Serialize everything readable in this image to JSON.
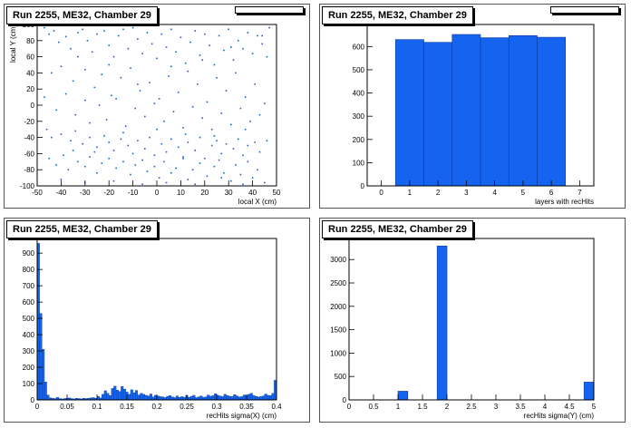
{
  "colors": {
    "fill": "#1464f0",
    "edge": "#0a3a9a",
    "scatter": "#1a5fd0"
  },
  "panels": [
    {
      "title": "Run 2255, ME32, Chamber 29"
    },
    {
      "title": "Run 2255, ME32, Chamber 29"
    },
    {
      "title": "Run 2255, ME32, Chamber 29"
    },
    {
      "title": "Run 2255, ME32, Chamber 29"
    }
  ],
  "chart_data": [
    {
      "type": "scatter",
      "xlabel": "local X (cm)",
      "ylabel": "local Y (cm)",
      "xlim": [
        -50,
        50
      ],
      "ylim": [
        -100,
        100
      ],
      "xticks": [
        -50,
        -40,
        -30,
        -20,
        -10,
        0,
        10,
        20,
        30,
        40,
        50
      ],
      "yticks": [
        -100,
        -80,
        -60,
        -40,
        -20,
        0,
        20,
        40,
        60,
        80,
        100
      ],
      "points": [
        [
          -45,
          88
        ],
        [
          -43,
          92
        ],
        [
          -41,
          78
        ],
        [
          -38,
          85
        ],
        [
          -36,
          70
        ],
        [
          -33,
          90
        ],
        [
          -31,
          94
        ],
        [
          -29,
          80
        ],
        [
          -27,
          66
        ],
        [
          -25,
          88
        ],
        [
          -22,
          92
        ],
        [
          -20,
          74
        ],
        [
          -18,
          60
        ],
        [
          -16,
          86
        ],
        [
          -14,
          94
        ],
        [
          -12,
          70
        ],
        [
          -10,
          96
        ],
        [
          -8,
          82
        ],
        [
          -6,
          64
        ],
        [
          -4,
          90
        ],
        [
          -2,
          76
        ],
        [
          0,
          58
        ],
        [
          2,
          88
        ],
        [
          4,
          72
        ],
        [
          6,
          94
        ],
        [
          8,
          66
        ],
        [
          10,
          84
        ],
        [
          12,
          52
        ],
        [
          14,
          78
        ],
        [
          16,
          92
        ],
        [
          18,
          62
        ],
        [
          20,
          88
        ],
        [
          22,
          74
        ],
        [
          24,
          50
        ],
        [
          26,
          86
        ],
        [
          28,
          68
        ],
        [
          30,
          94
        ],
        [
          32,
          56
        ],
        [
          34,
          80
        ],
        [
          36,
          70
        ],
        [
          38,
          90
        ],
        [
          40,
          64
        ],
        [
          42,
          86
        ],
        [
          44,
          76
        ],
        [
          46,
          60
        ],
        [
          -44,
          40
        ],
        [
          -40,
          48
        ],
        [
          -35,
          30
        ],
        [
          -30,
          44
        ],
        [
          -26,
          22
        ],
        [
          -23,
          38
        ],
        [
          -19,
          12
        ],
        [
          -15,
          34
        ],
        [
          -11,
          46
        ],
        [
          -7,
          18
        ],
        [
          -3,
          28
        ],
        [
          1,
          8
        ],
        [
          5,
          36
        ],
        [
          9,
          16
        ],
        [
          13,
          42
        ],
        [
          17,
          26
        ],
        [
          21,
          4
        ],
        [
          25,
          34
        ],
        [
          29,
          18
        ],
        [
          33,
          40
        ],
        [
          37,
          10
        ],
        [
          41,
          26
        ],
        [
          45,
          2
        ],
        [
          -47,
          10
        ],
        [
          -42,
          -6
        ],
        [
          -38,
          14
        ],
        [
          -34,
          -12
        ],
        [
          -30,
          6
        ],
        [
          -28,
          -22
        ],
        [
          -24,
          0
        ],
        [
          -21,
          -18
        ],
        [
          -17,
          8
        ],
        [
          -13,
          -26
        ],
        [
          -9,
          -4
        ],
        [
          -5,
          -14
        ],
        [
          -1,
          2
        ],
        [
          3,
          -20
        ],
        [
          7,
          -8
        ],
        [
          11,
          -28
        ],
        [
          15,
          -2
        ],
        [
          19,
          -16
        ],
        [
          23,
          -30
        ],
        [
          27,
          -10
        ],
        [
          31,
          -24
        ],
        [
          35,
          -4
        ],
        [
          39,
          -20
        ],
        [
          43,
          -12
        ],
        [
          -46,
          -30
        ],
        [
          -44,
          -40
        ],
        [
          -40,
          -36
        ],
        [
          -36,
          -44
        ],
        [
          -34,
          -32
        ],
        [
          -31,
          -48
        ],
        [
          -28,
          -40
        ],
        [
          -25,
          -52
        ],
        [
          -22,
          -38
        ],
        [
          -20,
          -46
        ],
        [
          -18,
          -56
        ],
        [
          -15,
          -42
        ],
        [
          -12,
          -50
        ],
        [
          -10,
          -60
        ],
        [
          -8,
          -44
        ],
        [
          -5,
          -54
        ],
        [
          -3,
          -40
        ],
        [
          -1,
          -62
        ],
        [
          2,
          -48
        ],
        [
          4,
          -58
        ],
        [
          6,
          -42
        ],
        [
          9,
          -52
        ],
        [
          11,
          -64
        ],
        [
          13,
          -46
        ],
        [
          16,
          -56
        ],
        [
          18,
          -40
        ],
        [
          20,
          -66
        ],
        [
          23,
          -50
        ],
        [
          25,
          -44
        ],
        [
          27,
          -60
        ],
        [
          29,
          -48
        ],
        [
          32,
          -54
        ],
        [
          34,
          -42
        ],
        [
          36,
          -62
        ],
        [
          38,
          -50
        ],
        [
          41,
          -46
        ],
        [
          43,
          -58
        ],
        [
          46,
          -44
        ],
        [
          -45,
          -66
        ],
        [
          -42,
          -74
        ],
        [
          -39,
          -62
        ],
        [
          -37,
          -80
        ],
        [
          -33,
          -70
        ],
        [
          -30,
          -76
        ],
        [
          -28,
          -64
        ],
        [
          -25,
          -84
        ],
        [
          -23,
          -72
        ],
        [
          -20,
          -66
        ],
        [
          -17,
          -78
        ],
        [
          -14,
          -70
        ],
        [
          -11,
          -86
        ],
        [
          -9,
          -74
        ],
        [
          -6,
          -68
        ],
        [
          -4,
          -82
        ],
        [
          -1,
          -76
        ],
        [
          1,
          -90
        ],
        [
          3,
          -70
        ],
        [
          6,
          -84
        ],
        [
          8,
          -78
        ],
        [
          11,
          -66
        ],
        [
          13,
          -92
        ],
        [
          15,
          -80
        ],
        [
          18,
          -72
        ],
        [
          21,
          -88
        ],
        [
          24,
          -76
        ],
        [
          26,
          -68
        ],
        [
          28,
          -84
        ],
        [
          31,
          -94
        ],
        [
          33,
          -74
        ],
        [
          35,
          -86
        ],
        [
          38,
          -70
        ],
        [
          40,
          -90
        ],
        [
          42,
          -80
        ],
        [
          45,
          -96
        ],
        [
          -40,
          -92
        ],
        [
          -30,
          -96
        ],
        [
          -18,
          -94
        ],
        [
          -6,
          -98
        ],
        [
          4,
          -96
        ],
        [
          16,
          -98
        ],
        [
          27,
          -90
        ],
        [
          36,
          -98
        ],
        [
          -35,
          -56
        ],
        [
          -26,
          -58
        ],
        [
          -14,
          -34
        ],
        [
          0,
          -30
        ],
        [
          12,
          -36
        ],
        [
          24,
          -38
        ],
        [
          37,
          -30
        ],
        [
          -8,
          26
        ],
        [
          6,
          48
        ],
        [
          19,
          56
        ],
        [
          31,
          72
        ],
        [
          -20,
          50
        ],
        [
          -33,
          60
        ],
        [
          44,
          86
        ],
        [
          -47,
          96
        ],
        [
          47,
          96
        ]
      ]
    },
    {
      "type": "bar",
      "xlabel": "layers with recHits",
      "ylabel": "",
      "xlim": [
        -0.5,
        7.5
      ],
      "ylim": [
        0,
        695
      ],
      "xticks": [
        0,
        1,
        2,
        3,
        4,
        5,
        6,
        7
      ],
      "yticks": [
        0,
        100,
        200,
        300,
        400,
        500,
        600
      ],
      "bin_width": 1,
      "bins": [
        {
          "x": 1,
          "value": 630
        },
        {
          "x": 2,
          "value": 618
        },
        {
          "x": 3,
          "value": 652
        },
        {
          "x": 4,
          "value": 638
        },
        {
          "x": 5,
          "value": 647
        },
        {
          "x": 6,
          "value": 640
        }
      ]
    },
    {
      "type": "bar",
      "xlabel": "recHits sigma(X) (cm)",
      "ylabel": "",
      "xlim": [
        0,
        0.4
      ],
      "ylim": [
        0,
        990
      ],
      "xticks": [
        0,
        0.05,
        0.1,
        0.15,
        0.2,
        0.25,
        0.3,
        0.35,
        0.4
      ],
      "yticks": [
        0,
        100,
        200,
        300,
        400,
        500,
        600,
        700,
        800,
        900
      ],
      "bin_width": 0.004,
      "values": [
        960,
        530,
        310,
        110,
        30,
        12,
        10,
        8,
        16,
        8,
        6,
        8,
        10,
        12,
        8,
        6,
        10,
        8,
        6,
        10,
        8,
        10,
        12,
        14,
        10,
        22,
        12,
        34,
        56,
        40,
        26,
        70,
        84,
        60,
        52,
        82,
        66,
        48,
        34,
        62,
        44,
        58,
        30,
        40,
        34,
        28,
        24,
        36,
        18,
        28,
        24,
        20,
        18,
        14,
        22,
        26,
        18,
        14,
        24,
        16,
        20,
        16,
        26,
        16,
        22,
        28,
        14,
        18,
        24,
        16,
        18,
        30,
        22,
        26,
        38,
        28,
        24,
        20,
        34,
        26,
        22,
        20,
        32,
        24,
        18,
        20,
        30,
        28,
        34,
        40,
        26,
        22,
        18,
        20,
        24,
        36,
        28,
        26,
        40,
        120
      ]
    },
    {
      "type": "bar",
      "xlabel": "recHits sigma(Y) (cm)",
      "ylabel": "",
      "xlim": [
        0,
        5
      ],
      "ylim": [
        0,
        3450
      ],
      "xticks": [
        0,
        0.5,
        1,
        1.5,
        2,
        2.5,
        3,
        3.5,
        4,
        4.5,
        5
      ],
      "yticks": [
        0,
        500,
        1000,
        1500,
        2000,
        2500,
        3000
      ],
      "bin_width": 0.2,
      "bins": [
        {
          "x": 1.1,
          "value": 185
        },
        {
          "x": 1.9,
          "value": 3290
        },
        {
          "x": 4.9,
          "value": 380
        }
      ]
    }
  ]
}
